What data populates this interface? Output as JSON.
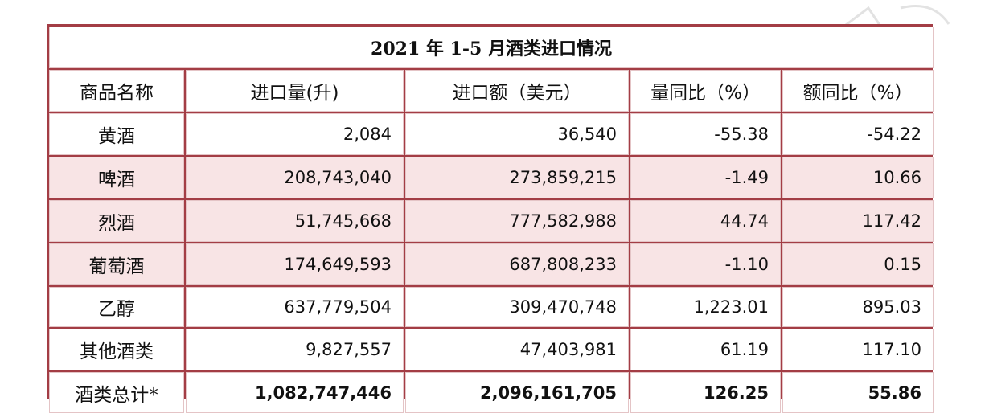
{
  "table": {
    "title": "2021 年 1-5 月酒类进口情况",
    "headers": [
      "商品名称",
      "进口量(升)",
      "进口额（美元）",
      "量同比（%）",
      "额同比（%）"
    ],
    "rows": [
      {
        "name": "黄酒",
        "volume": "2,084",
        "amount": "36,540",
        "vol_yoy": "-55.38",
        "amt_yoy": "-54.22"
      },
      {
        "name": "啤酒",
        "volume": "208,743,040",
        "amount": "273,859,215",
        "vol_yoy": "-1.49",
        "amt_yoy": "10.66"
      },
      {
        "name": "烈酒",
        "volume": "51,745,668",
        "amount": "777,582,988",
        "vol_yoy": "44.74",
        "amt_yoy": "117.42"
      },
      {
        "name": "葡萄酒",
        "volume": "174,649,593",
        "amount": "687,808,233",
        "vol_yoy": "-1.10",
        "amt_yoy": "0.15"
      },
      {
        "name": "乙醇",
        "volume": "637,779,504",
        "amount": "309,470,748",
        "vol_yoy": "1,223.01",
        "amt_yoy": "895.03"
      },
      {
        "name": "其他酒类",
        "volume": "9,827,557",
        "amount": "47,403,981",
        "vol_yoy": "61.19",
        "amt_yoy": "117.10"
      },
      {
        "name": "酒类总计*",
        "volume": "1,082,747,446",
        "amount": "2,096,161,705",
        "vol_yoy": "126.25",
        "amt_yoy": "55.86"
      }
    ]
  },
  "colors": {
    "border": "#a33d45",
    "highlight_fill": "#f8e4e5",
    "cell_fill": "#ffffff"
  }
}
